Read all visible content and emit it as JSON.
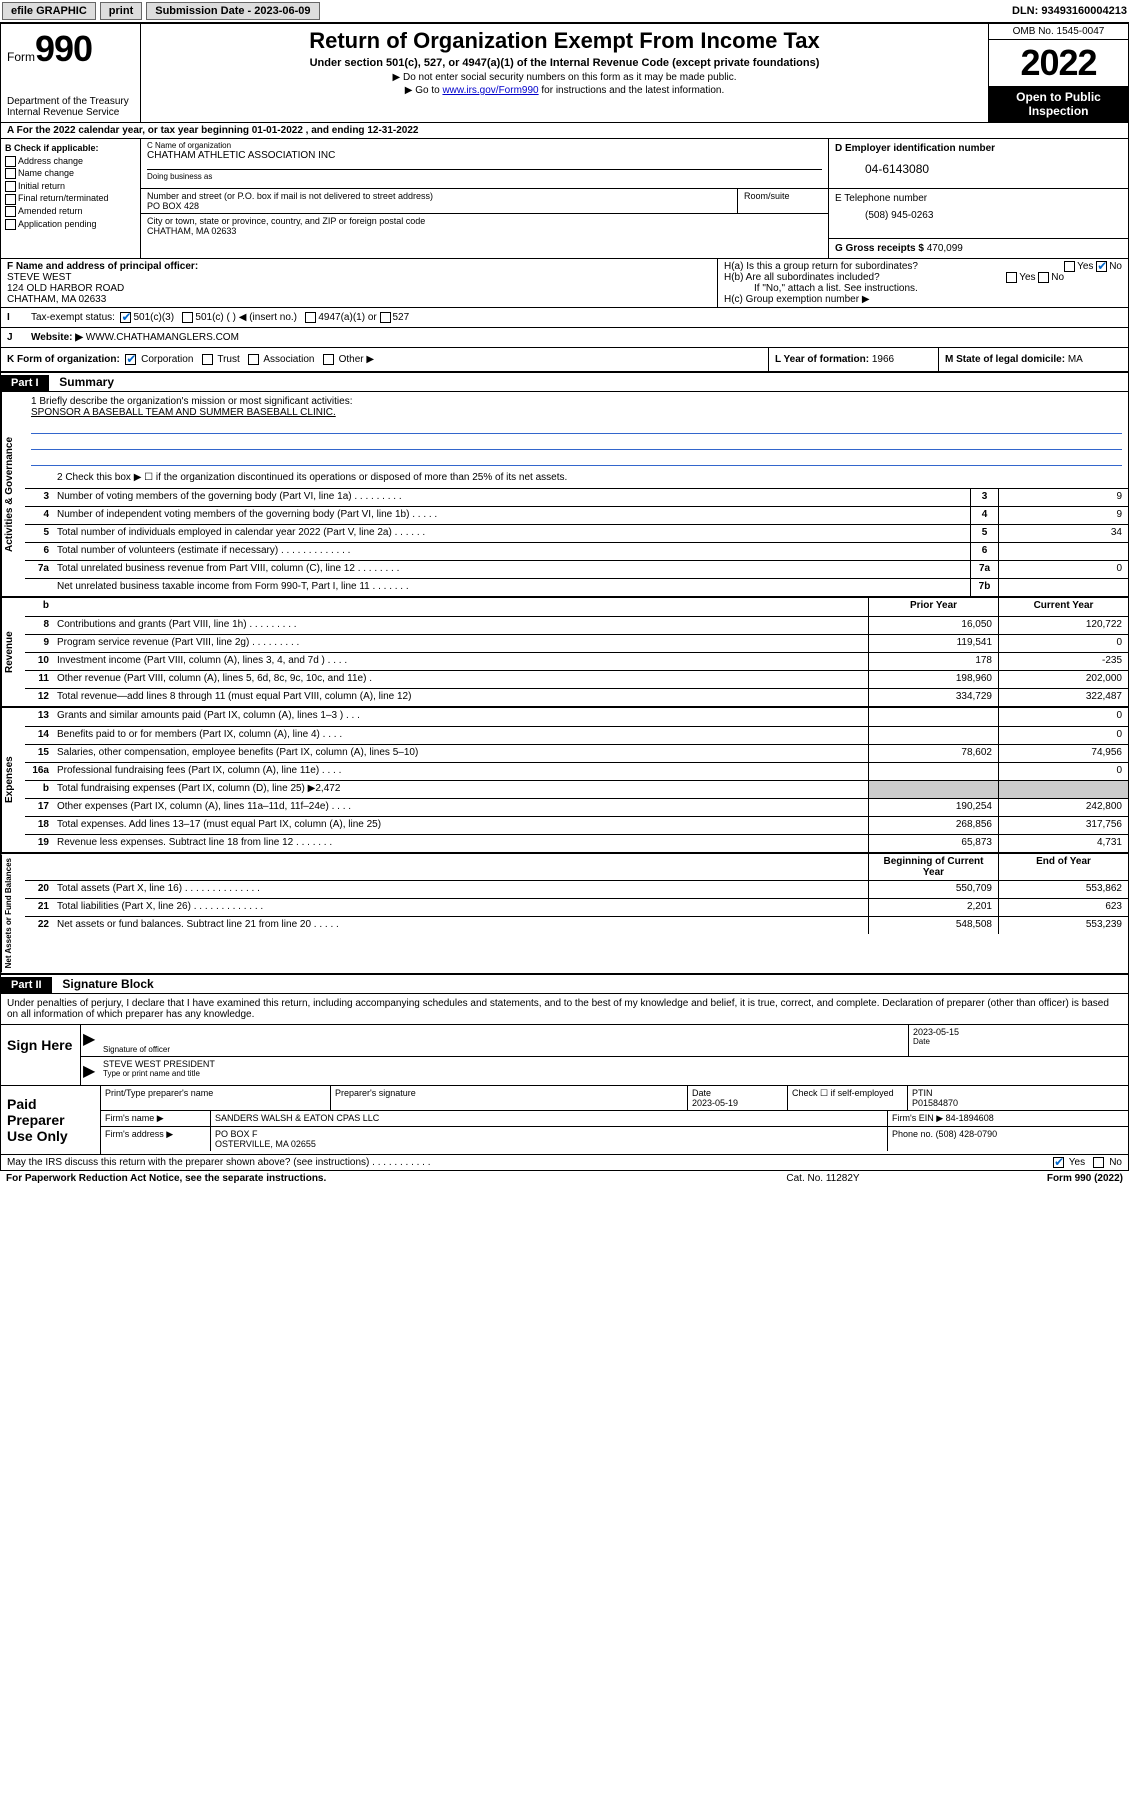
{
  "toolbar": {
    "efile": "efile GRAPHIC",
    "print": "print",
    "sub_date_label": "Submission Date - 2023-06-09",
    "dln": "DLN: 93493160004213"
  },
  "header": {
    "form_label": "Form",
    "form_no": "990",
    "dept": "Department of the Treasury",
    "irs": "Internal Revenue Service",
    "title": "Return of Organization Exempt From Income Tax",
    "sub": "Under section 501(c), 527, or 4947(a)(1) of the Internal Revenue Code (except private foundations)",
    "note1": "▶ Do not enter social security numbers on this form as it may be made public.",
    "note2_pre": "▶ Go to ",
    "note2_link": "www.irs.gov/Form990",
    "note2_post": " for instructions and the latest information.",
    "omb": "OMB No. 1545-0047",
    "year": "2022",
    "open": "Open to Public Inspection"
  },
  "rowA": {
    "text": "A For the 2022 calendar year, or tax year beginning 01-01-2022    , and ending 12-31-2022"
  },
  "boxB": {
    "label": "B Check if applicable:",
    "items": [
      "Address change",
      "Name change",
      "Initial return",
      "Final return/terminated",
      "Amended return",
      "Application pending"
    ]
  },
  "boxC": {
    "name_lbl": "C Name of organization",
    "name": "CHATHAM ATHLETIC ASSOCIATION INC",
    "dba_lbl": "Doing business as",
    "addr_lbl": "Number and street (or P.O. box if mail is not delivered to street address)",
    "addr": "PO BOX 428",
    "room_lbl": "Room/suite",
    "city_lbl": "City or town, state or province, country, and ZIP or foreign postal code",
    "city": "CHATHAM, MA  02633"
  },
  "boxD": {
    "lbl": "D Employer identification number",
    "ein": "04-6143080"
  },
  "boxE": {
    "lbl": "E Telephone number",
    "phone": "(508) 945-0263"
  },
  "boxG": {
    "lbl": "G Gross receipts $",
    "val": "470,099"
  },
  "boxF": {
    "lbl": "F Name and address of principal officer:",
    "name": "STEVE WEST",
    "addr1": "124 OLD HARBOR ROAD",
    "addr2": "CHATHAM, MA  02633"
  },
  "boxH": {
    "ha": "H(a)  Is this a group return for subordinates?",
    "hb": "H(b)  Are all subordinates included?",
    "hb_note": "If \"No,\" attach a list. See instructions.",
    "hc": "H(c)  Group exemption number ▶",
    "yes": "Yes",
    "no": "No"
  },
  "rowI": {
    "lbl": "Tax-exempt status:",
    "o1": "501(c)(3)",
    "o2": "501(c) (   ) ◀ (insert no.)",
    "o3": "4947(a)(1) or",
    "o4": "527"
  },
  "rowJ": {
    "lbl": "Website: ▶",
    "val": "WWW.CHATHAMANGLERS.COM"
  },
  "rowK": {
    "lbl": "K Form of organization:",
    "o1": "Corporation",
    "o2": "Trust",
    "o3": "Association",
    "o4": "Other ▶",
    "l_lbl": "L Year of formation:",
    "l_val": "1966",
    "m_lbl": "M State of legal domicile:",
    "m_val": "MA"
  },
  "part1": {
    "hdr": "Part I",
    "title": "Summary",
    "mission_lbl": "1  Briefly describe the organization's mission or most significant activities:",
    "mission": "SPONSOR A BASEBALL TEAM AND SUMMER BASEBALL CLINIC.",
    "line2": "2  Check this box ▶ ☐  if the organization discontinued its operations or disposed of more than 25% of its net assets.",
    "rows_gov": [
      {
        "n": "3",
        "d": "Number of voting members of the governing body (Part VI, line 1a)  .    .    .    .    .    .    .    .    .",
        "b": "3",
        "v": "9"
      },
      {
        "n": "4",
        "d": "Number of independent voting members of the governing body (Part VI, line 1b)  .    .    .    .    .",
        "b": "4",
        "v": "9"
      },
      {
        "n": "5",
        "d": "Total number of individuals employed in calendar year 2022 (Part V, line 2a)  .    .    .    .    .    .",
        "b": "5",
        "v": "34"
      },
      {
        "n": "6",
        "d": "Total number of volunteers (estimate if necessary)  .    .    .    .    .    .    .    .    .    .    .    .    .",
        "b": "6",
        "v": ""
      },
      {
        "n": "7a",
        "d": "Total unrelated business revenue from Part VIII, column (C), line 12  .    .    .    .    .    .    .    .",
        "b": "7a",
        "v": "0"
      },
      {
        "n": "",
        "d": "Net unrelated business taxable income from Form 990-T, Part I, line 11  .    .    .    .    .    .    .",
        "b": "7b",
        "v": ""
      }
    ],
    "col_hdr": {
      "b": "b",
      "py": "Prior Year",
      "cy": "Current Year"
    },
    "rows_rev": [
      {
        "n": "8",
        "d": "Contributions and grants (Part VIII, line 1h)  .    .    .    .    .    .    .    .    .",
        "py": "16,050",
        "cy": "120,722"
      },
      {
        "n": "9",
        "d": "Program service revenue (Part VIII, line 2g)  .    .    .    .    .    .    .    .    .",
        "py": "119,541",
        "cy": "0"
      },
      {
        "n": "10",
        "d": "Investment income (Part VIII, column (A), lines 3, 4, and 7d )  .    .    .    .",
        "py": "178",
        "cy": "-235"
      },
      {
        "n": "11",
        "d": "Other revenue (Part VIII, column (A), lines 5, 6d, 8c, 9c, 10c, and 11e)  .",
        "py": "198,960",
        "cy": "202,000"
      },
      {
        "n": "12",
        "d": "Total revenue—add lines 8 through 11 (must equal Part VIII, column (A), line 12)",
        "py": "334,729",
        "cy": "322,487"
      }
    ],
    "rows_exp": [
      {
        "n": "13",
        "d": "Grants and similar amounts paid (Part IX, column (A), lines 1–3 )  .    .    .",
        "py": "",
        "cy": "0"
      },
      {
        "n": "14",
        "d": "Benefits paid to or for members (Part IX, column (A), line 4)  .    .    .    .",
        "py": "",
        "cy": "0"
      },
      {
        "n": "15",
        "d": "Salaries, other compensation, employee benefits (Part IX, column (A), lines 5–10)",
        "py": "78,602",
        "cy": "74,956"
      },
      {
        "n": "16a",
        "d": "Professional fundraising fees (Part IX, column (A), line 11e)  .    .    .    .",
        "py": "",
        "cy": "0"
      },
      {
        "n": "b",
        "d": "Total fundraising expenses (Part IX, column (D), line 25) ▶2,472",
        "py": "shade",
        "cy": "shade"
      },
      {
        "n": "17",
        "d": "Other expenses (Part IX, column (A), lines 11a–11d, 11f–24e)  .    .    .    .",
        "py": "190,254",
        "cy": "242,800"
      },
      {
        "n": "18",
        "d": "Total expenses. Add lines 13–17 (must equal Part IX, column (A), line 25)",
        "py": "268,856",
        "cy": "317,756"
      },
      {
        "n": "19",
        "d": "Revenue less expenses. Subtract line 18 from line 12  .    .    .    .    .    .    .",
        "py": "65,873",
        "cy": "4,731"
      }
    ],
    "na_hdr": {
      "py": "Beginning of Current Year",
      "cy": "End of Year"
    },
    "rows_na": [
      {
        "n": "20",
        "d": "Total assets (Part X, line 16)  .    .    .    .    .    .    .    .    .    .    .    .    .    .",
        "py": "550,709",
        "cy": "553,862"
      },
      {
        "n": "21",
        "d": "Total liabilities (Part X, line 26)  .    .    .    .    .    .    .    .    .    .    .    .    .",
        "py": "2,201",
        "cy": "623"
      },
      {
        "n": "22",
        "d": "Net assets or fund balances. Subtract line 21 from line 20  .    .    .    .    .",
        "py": "548,508",
        "cy": "553,239"
      }
    ]
  },
  "vtabs": {
    "gov": "Activities & Governance",
    "rev": "Revenue",
    "exp": "Expenses",
    "na": "Net Assets or Fund Balances"
  },
  "part2": {
    "hdr": "Part II",
    "title": "Signature Block",
    "decl": "Under penalties of perjury, I declare that I have examined this return, including accompanying schedules and statements, and to the best of my knowledge and belief, it is true, correct, and complete. Declaration of preparer (other than officer) is based on all information of which preparer has any knowledge."
  },
  "sign": {
    "lab": "Sign Here",
    "sig_lbl": "Signature of officer",
    "date_lbl": "Date",
    "date": "2023-05-15",
    "name": "STEVE WEST  PRESIDENT",
    "name_lbl": "Type or print name and title"
  },
  "prep": {
    "lab": "Paid Preparer Use Only",
    "c1": "Print/Type preparer's name",
    "c2": "Preparer's signature",
    "c3": "Date",
    "c3v": "2023-05-19",
    "c4a": "Check ☐ if self-employed",
    "c5": "PTIN",
    "c5v": "P01584870",
    "firm_name_lbl": "Firm's name    ▶",
    "firm_name": "SANDERS WALSH & EATON CPAS LLC",
    "firm_ein_lbl": "Firm's EIN ▶",
    "firm_ein": "84-1894608",
    "firm_addr_lbl": "Firm's address ▶",
    "firm_addr1": "PO BOX F",
    "firm_addr2": "OSTERVILLE, MA  02655",
    "phone_lbl": "Phone no.",
    "phone": "(508) 428-0790"
  },
  "foot_irs": {
    "q": "May the IRS discuss this return with the preparer shown above? (see instructions)  .    .    .    .    .    .    .    .    .    .    .",
    "yes": "Yes",
    "no": "No"
  },
  "footer": {
    "left": "For Paperwork Reduction Act Notice, see the separate instructions.",
    "mid": "Cat. No. 11282Y",
    "right": "Form 990 (2022)"
  }
}
